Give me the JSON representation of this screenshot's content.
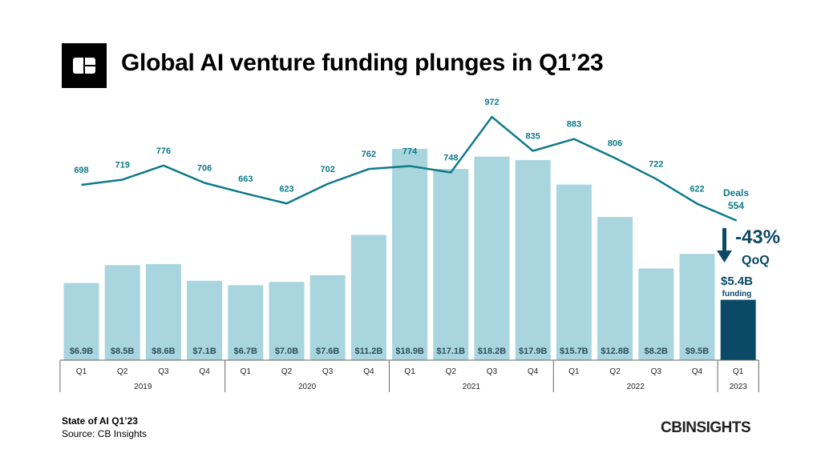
{
  "title": "Global AI venture funding plunges in Q1’23",
  "footer": {
    "title": "State of AI Q1’23",
    "source": "Source: CB Insights"
  },
  "brand": "CBINSIGHTS",
  "colors": {
    "bar": "#a8d5de",
    "bar_highlight": "#0b4a66",
    "line": "#0e7a8a",
    "callout": "#0b4a66"
  },
  "callout": {
    "change": "-43%",
    "period": "QoQ",
    "amount": "$5.4B",
    "amount_label": "funding",
    "deals_label": "Deals",
    "arrow": "down-arrow-icon"
  },
  "chart_data": {
    "type": "bar+line",
    "categories": [
      "Q1",
      "Q2",
      "Q3",
      "Q4",
      "Q1",
      "Q2",
      "Q3",
      "Q4",
      "Q1",
      "Q2",
      "Q3",
      "Q4",
      "Q1",
      "Q2",
      "Q3",
      "Q4",
      "Q1"
    ],
    "years": [
      {
        "label": "2019",
        "span": 4
      },
      {
        "label": "2020",
        "span": 4
      },
      {
        "label": "2021",
        "span": 4
      },
      {
        "label": "2022",
        "span": 4
      },
      {
        "label": "2023",
        "span": 1
      }
    ],
    "series": [
      {
        "type": "bar",
        "unit": "$B",
        "values": [
          6.9,
          8.5,
          8.6,
          7.1,
          6.7,
          7.0,
          7.6,
          11.2,
          18.9,
          17.1,
          18.2,
          17.9,
          15.7,
          12.8,
          8.2,
          9.5,
          5.4
        ],
        "labels": [
          "$6.9B",
          "$8.5B",
          "$8.6B",
          "$7.1B",
          "$6.7B",
          "$7.0B",
          "$7.6B",
          "$11.2B",
          "$18.9B",
          "$17.1B",
          "$18.2B",
          "$17.9B",
          "$15.7B",
          "$12.8B",
          "$8.2B",
          "$9.5B",
          ""
        ]
      },
      {
        "type": "line",
        "name": "Deals",
        "values": [
          698,
          719,
          776,
          706,
          663,
          623,
          702,
          762,
          774,
          748,
          972,
          835,
          883,
          806,
          722,
          622,
          554
        ]
      }
    ]
  }
}
